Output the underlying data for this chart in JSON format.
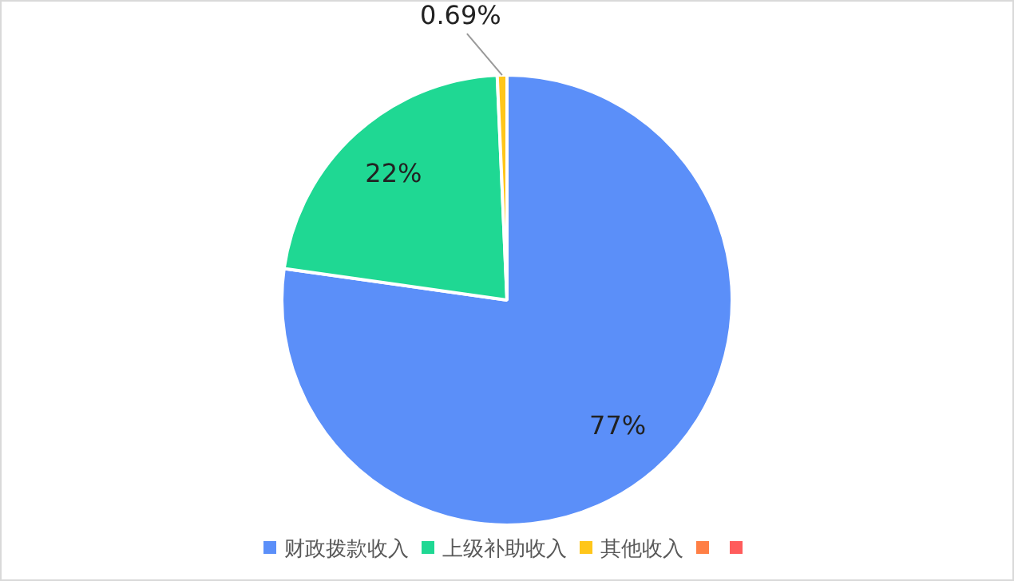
{
  "chart_data": {
    "type": "pie",
    "categories": [
      "财政拨款收入",
      "上级补助收入",
      "其他收入",
      null,
      null
    ],
    "values": [
      77,
      22,
      0.69,
      0,
      0
    ],
    "colors": [
      "#5b8ff9",
      "#1fd893",
      "#ffc61a",
      "#ff7f45",
      "#ff5c5c"
    ],
    "value_labels": [
      "77%",
      "22%",
      "0.69%",
      null,
      null
    ],
    "legend": "bottom"
  }
}
